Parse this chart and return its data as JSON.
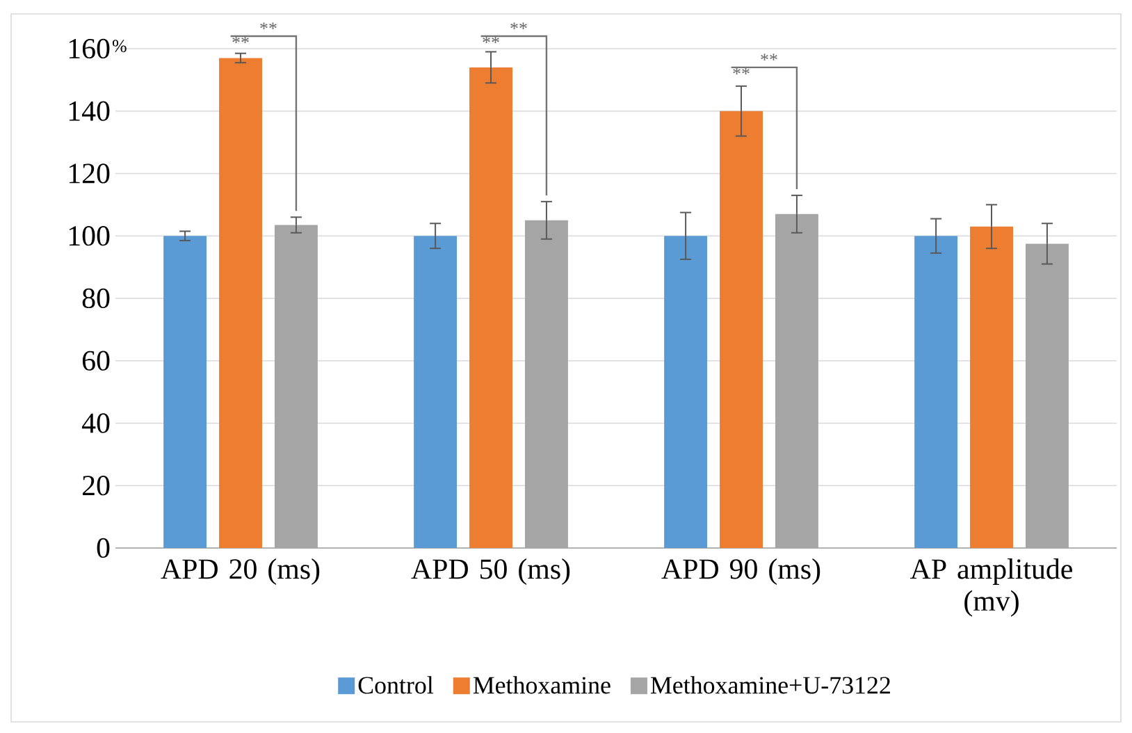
{
  "chart_data": {
    "type": "bar",
    "categories": [
      "APD 20 (ms)",
      "APD 50 (ms)",
      "APD 90 (ms)",
      "AP amplitude (mv)"
    ],
    "ylabel": "%",
    "series": [
      {
        "name": "Control",
        "color": "#5b9bd5",
        "values": [
          100,
          100,
          100,
          100
        ],
        "errors": [
          1.5,
          4,
          7.5,
          5.5
        ]
      },
      {
        "name": "Methoxamine",
        "color": "#ed7d31",
        "values": [
          157,
          154,
          140,
          103
        ],
        "errors": [
          1.5,
          5,
          8,
          7
        ]
      },
      {
        "name": "Methoxamine+U-73122",
        "color": "#a5a5a5",
        "values": [
          103.5,
          105,
          107,
          97.5
        ],
        "errors": [
          2.5,
          6,
          6,
          6.5
        ]
      }
    ],
    "ylim": [
      0,
      160
    ],
    "yticks": [
      0,
      20,
      40,
      60,
      80,
      100,
      120,
      140,
      160
    ],
    "grid": "y",
    "legend": "bottom",
    "annotations": [
      {
        "text": "**",
        "x": "APD 20 (ms)",
        "y": 160
      },
      "**",
      {
        "text": "**",
        "x": "APD 50 (ms)",
        "y": 160
      },
      "**",
      {
        "text": "**",
        "x": "APD 90 (ms)",
        "y": 150
      },
      "**"
    ]
  }
}
